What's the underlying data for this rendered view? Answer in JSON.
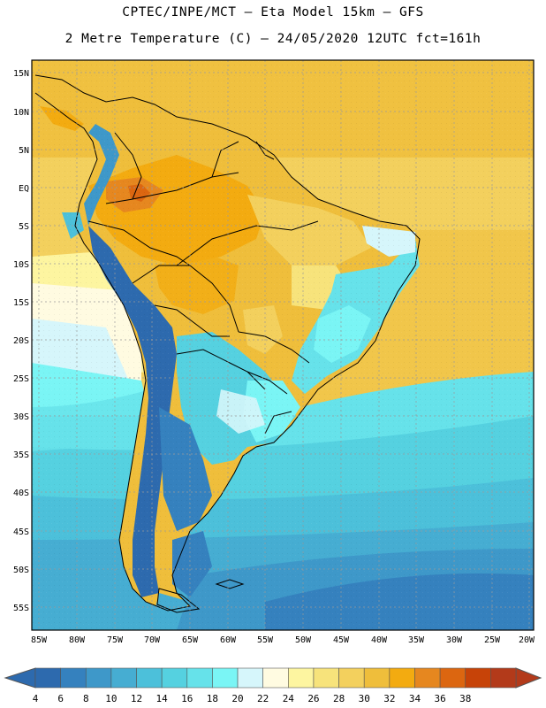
{
  "header": {
    "line1": "CPTEC/INPE/MCT –  Eta Model 15km – GFS",
    "line2": "2 Metre Temperature (C) – 24/05/2020 12UTC fct=161h"
  },
  "axes": {
    "lat_labels": [
      "15N",
      "10N",
      "5N",
      "EQ",
      "5S",
      "10S",
      "15S",
      "20S",
      "25S",
      "30S",
      "35S",
      "40S",
      "45S",
      "50S",
      "55S"
    ],
    "lon_labels": [
      "85W",
      "80W",
      "75W",
      "70W",
      "65W",
      "60W",
      "55W",
      "50W",
      "45W",
      "40W",
      "35W",
      "30W",
      "25W",
      "20W"
    ]
  },
  "colorbar": {
    "labels": [
      "4",
      "6",
      "8",
      "10",
      "12",
      "14",
      "16",
      "18",
      "20",
      "22",
      "24",
      "26",
      "28",
      "30",
      "32",
      "34",
      "36",
      "38"
    ],
    "colors": [
      "#2d6aae",
      "#3581be",
      "#3e98c9",
      "#46add2",
      "#4cc0da",
      "#55d1e0",
      "#66e2ea",
      "#7af5f5",
      "#d6f6fb",
      "#fffbe1",
      "#fdf5a0",
      "#f7e37b",
      "#f3d05d",
      "#efbe3b",
      "#f3ab10",
      "#e6871f",
      "#dc6610",
      "#c74308",
      "#b33a1a"
    ],
    "low_color": "#2d6aae",
    "high_color": "#b33a1a"
  }
}
